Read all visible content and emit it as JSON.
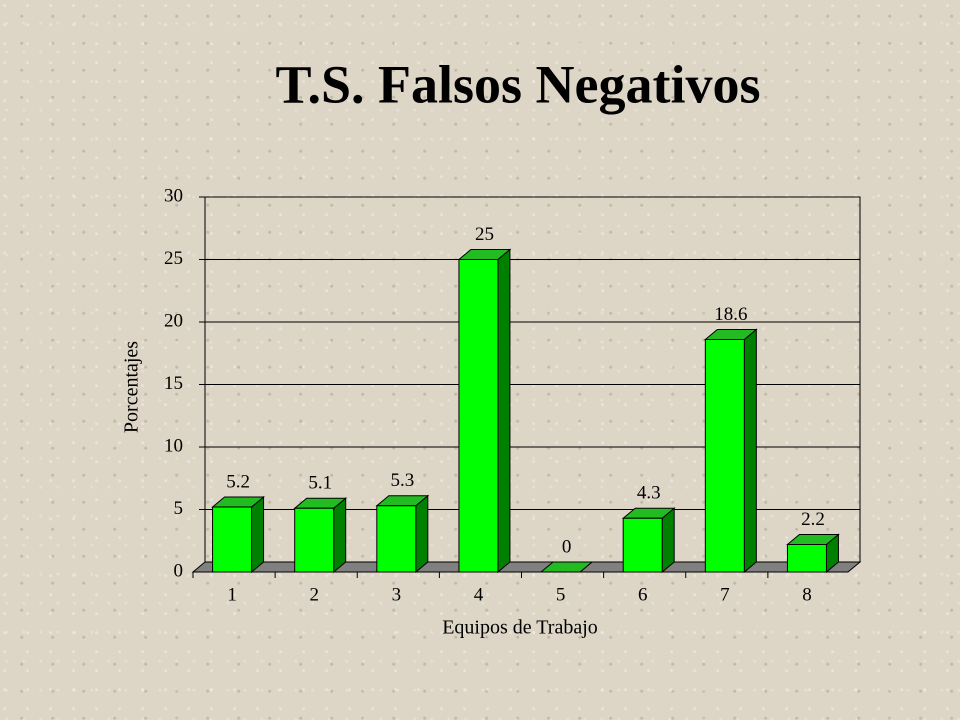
{
  "chart_data": {
    "type": "bar3d",
    "title": "T.S. Falsos Negativos",
    "x_label": "Equipos de Trabajo",
    "y_label": "Porcentajes",
    "categories": [
      "1",
      "2",
      "3",
      "4",
      "5",
      "6",
      "7",
      "8"
    ],
    "values": [
      5.2,
      5.1,
      5.3,
      25,
      0,
      4.3,
      18.6,
      2.2
    ],
    "color": "#00ff00",
    "ylim": [
      0,
      30
    ],
    "yticks": [
      0,
      5,
      10,
      15,
      20,
      25,
      30
    ],
    "grid": true
  }
}
